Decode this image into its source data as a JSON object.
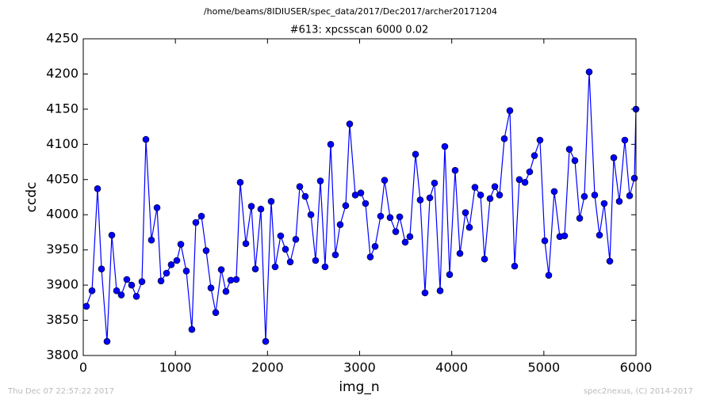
{
  "chart_data": {
    "type": "line",
    "suptitle": "/home/beams/8IDIUSER/spec_data/2017/Dec2017/archer20171204",
    "title": "#613: xpcsscan 6000 0.02",
    "x_label": "img_n",
    "y_label": "ccdc",
    "footer_left": "Thu Dec 07 22:57:22 2017",
    "footer_right": "spec2nexus, (C) 2014-2017",
    "x": [
      34,
      95,
      155,
      198,
      258,
      310,
      362,
      413,
      473,
      525,
      577,
      637,
      680,
      740,
      801,
      844,
      904,
      955,
      1016,
      1059,
      1119,
      1179,
      1222,
      1283,
      1334,
      1386,
      1438,
      1498,
      1549,
      1601,
      1661,
      1704,
      1765,
      1825,
      1868,
      1928,
      1980,
      2040,
      2083,
      2143,
      2195,
      2247,
      2307,
      2350,
      2410,
      2471,
      2522,
      2574,
      2625,
      2686,
      2737,
      2789,
      2849,
      2892,
      2953,
      3013,
      3064,
      3116,
      3168,
      3228,
      3271,
      3331,
      3392,
      3435,
      3495,
      3546,
      3607,
      3658,
      3710,
      3762,
      3813,
      3874,
      3925,
      3977,
      4037,
      4089,
      4149,
      4192,
      4252,
      4313,
      4356,
      4416,
      4468,
      4519,
      4571,
      4631,
      4683,
      4734,
      4795,
      4846,
      4898,
      4958,
      5010,
      5053,
      5113,
      5173,
      5225,
      5277,
      5337,
      5389,
      5440,
      5492,
      5552,
      5604,
      5655,
      5716,
      5759,
      5819,
      5879,
      5931,
      5983,
      6000
    ],
    "series": [
      {
        "name": "ccdc",
        "color": "#0000ff",
        "marker_edge": "#000000",
        "values": [
          3870,
          3892,
          4037,
          3923,
          3820,
          3971,
          3892,
          3886,
          3908,
          3900,
          3884,
          3905,
          4107,
          3964,
          4010,
          3906,
          3917,
          3929,
          3935,
          3958,
          3920,
          3837,
          3989,
          3998,
          3949,
          3896,
          3861,
          3922,
          3891,
          3907,
          3908,
          4046,
          3959,
          4012,
          3923,
          4008,
          3820,
          4019,
          3926,
          3970,
          3951,
          3933,
          3965,
          4040,
          4026,
          4000,
          3935,
          4048,
          3926,
          4100,
          3943,
          3986,
          4013,
          4129,
          4028,
          4031,
          4016,
          3940,
          3955,
          3998,
          4049,
          3996,
          3976,
          3997,
          3961,
          3969,
          4086,
          4021,
          3889,
          4024,
          4045,
          3892,
          4097,
          3915,
          4063,
          3945,
          4003,
          3982,
          4039,
          4028,
          3937,
          4023,
          4040,
          4028,
          4108,
          4148,
          3927,
          4050,
          4046,
          4061,
          4084,
          4106,
          3963,
          3914,
          4033,
          3969,
          3970,
          4093,
          4077,
          3995,
          4026,
          4203,
          4028,
          3971,
          4016,
          3934,
          4081,
          4019,
          4106,
          4027,
          4052,
          4150
        ]
      }
    ],
    "xlim": [
      0,
      6000
    ],
    "xticks": [
      0,
      1000,
      2000,
      3000,
      4000,
      5000,
      6000
    ],
    "ylim": [
      3800,
      4250
    ],
    "yticks": [
      3800,
      3850,
      3900,
      3950,
      4000,
      4050,
      4100,
      4150,
      4200,
      4250
    ],
    "grid": false
  }
}
